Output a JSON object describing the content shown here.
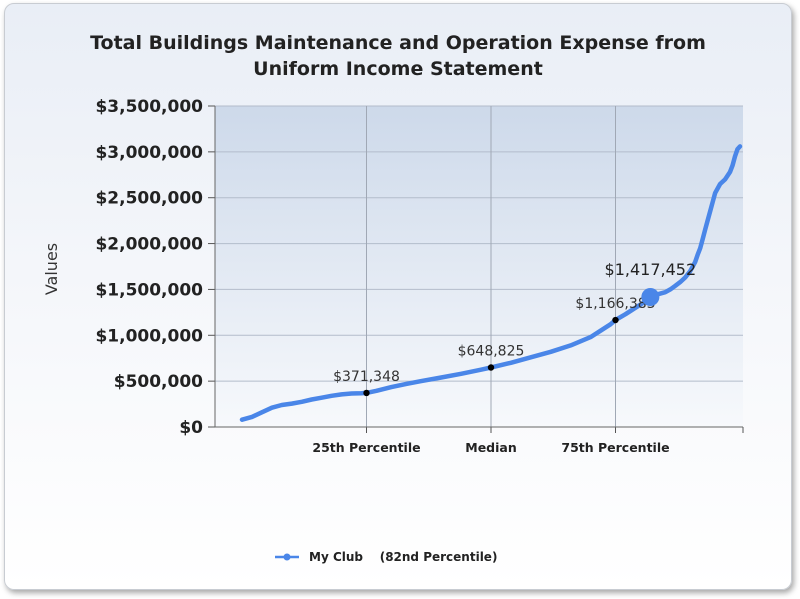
{
  "chart_data": {
    "type": "line",
    "title_lines": [
      "Total Buildings Maintenance and Operation Expense from",
      "Uniform Income Statement"
    ],
    "ylabel": "Values",
    "xlabel": "",
    "ylim": [
      0,
      3500000
    ],
    "y_ticks": [
      0,
      500000,
      1000000,
      1500000,
      2000000,
      2500000,
      3000000,
      3500000
    ],
    "y_tick_labels": [
      "$0",
      "$500,000",
      "$1,000,000",
      "$1,500,000",
      "$2,000,000",
      "$2,500,000",
      "$3,000,000",
      "$3,500,000"
    ],
    "xlim": [
      0,
      100
    ],
    "x_ticks": [
      {
        "pos": 25,
        "label": "25th Percentile"
      },
      {
        "pos": 50,
        "label": "Median"
      },
      {
        "pos": 75,
        "label": "75th Percentile"
      }
    ],
    "grid": true,
    "legend_position": "bottom-center",
    "series": [
      {
        "name": "My Club    (82nd Percentile)",
        "color": "#4a86e8",
        "x": [
          0,
          2,
          4,
          6,
          8,
          10,
          12,
          14,
          16,
          18,
          20,
          22,
          24,
          25,
          27,
          30,
          33,
          36,
          40,
          44,
          48,
          50,
          54,
          58,
          62,
          66,
          70,
          72,
          74,
          75,
          77,
          79,
          81,
          82,
          83,
          85,
          86,
          87,
          88,
          89,
          90,
          91,
          91.5,
          92,
          92.5,
          93,
          93.5,
          94,
          94.5,
          95,
          96,
          97,
          98,
          98.5,
          99,
          99.5,
          100
        ],
        "y": [
          80000,
          110000,
          160000,
          210000,
          240000,
          255000,
          275000,
          300000,
          320000,
          340000,
          355000,
          365000,
          368000,
          371348,
          395000,
          435000,
          470000,
          500000,
          540000,
          580000,
          625000,
          648825,
          700000,
          760000,
          820000,
          890000,
          980000,
          1050000,
          1120000,
          1166383,
          1230000,
          1300000,
          1370000,
          1417452,
          1440000,
          1470000,
          1500000,
          1540000,
          1580000,
          1630000,
          1700000,
          1800000,
          1880000,
          1950000,
          2050000,
          2150000,
          2250000,
          2350000,
          2450000,
          2550000,
          2650000,
          2700000,
          2780000,
          2850000,
          2950000,
          3030000,
          3060000
        ]
      }
    ],
    "annotations": [
      {
        "label": "$371,348",
        "x": 25,
        "y": 371348
      },
      {
        "label": "$648,825",
        "x": 50,
        "y": 648825
      },
      {
        "label": "$1,166,383",
        "x": 75,
        "y": 1166383
      }
    ],
    "highlight": {
      "label": "$1,417,452",
      "x": 82,
      "y": 1417452
    }
  }
}
